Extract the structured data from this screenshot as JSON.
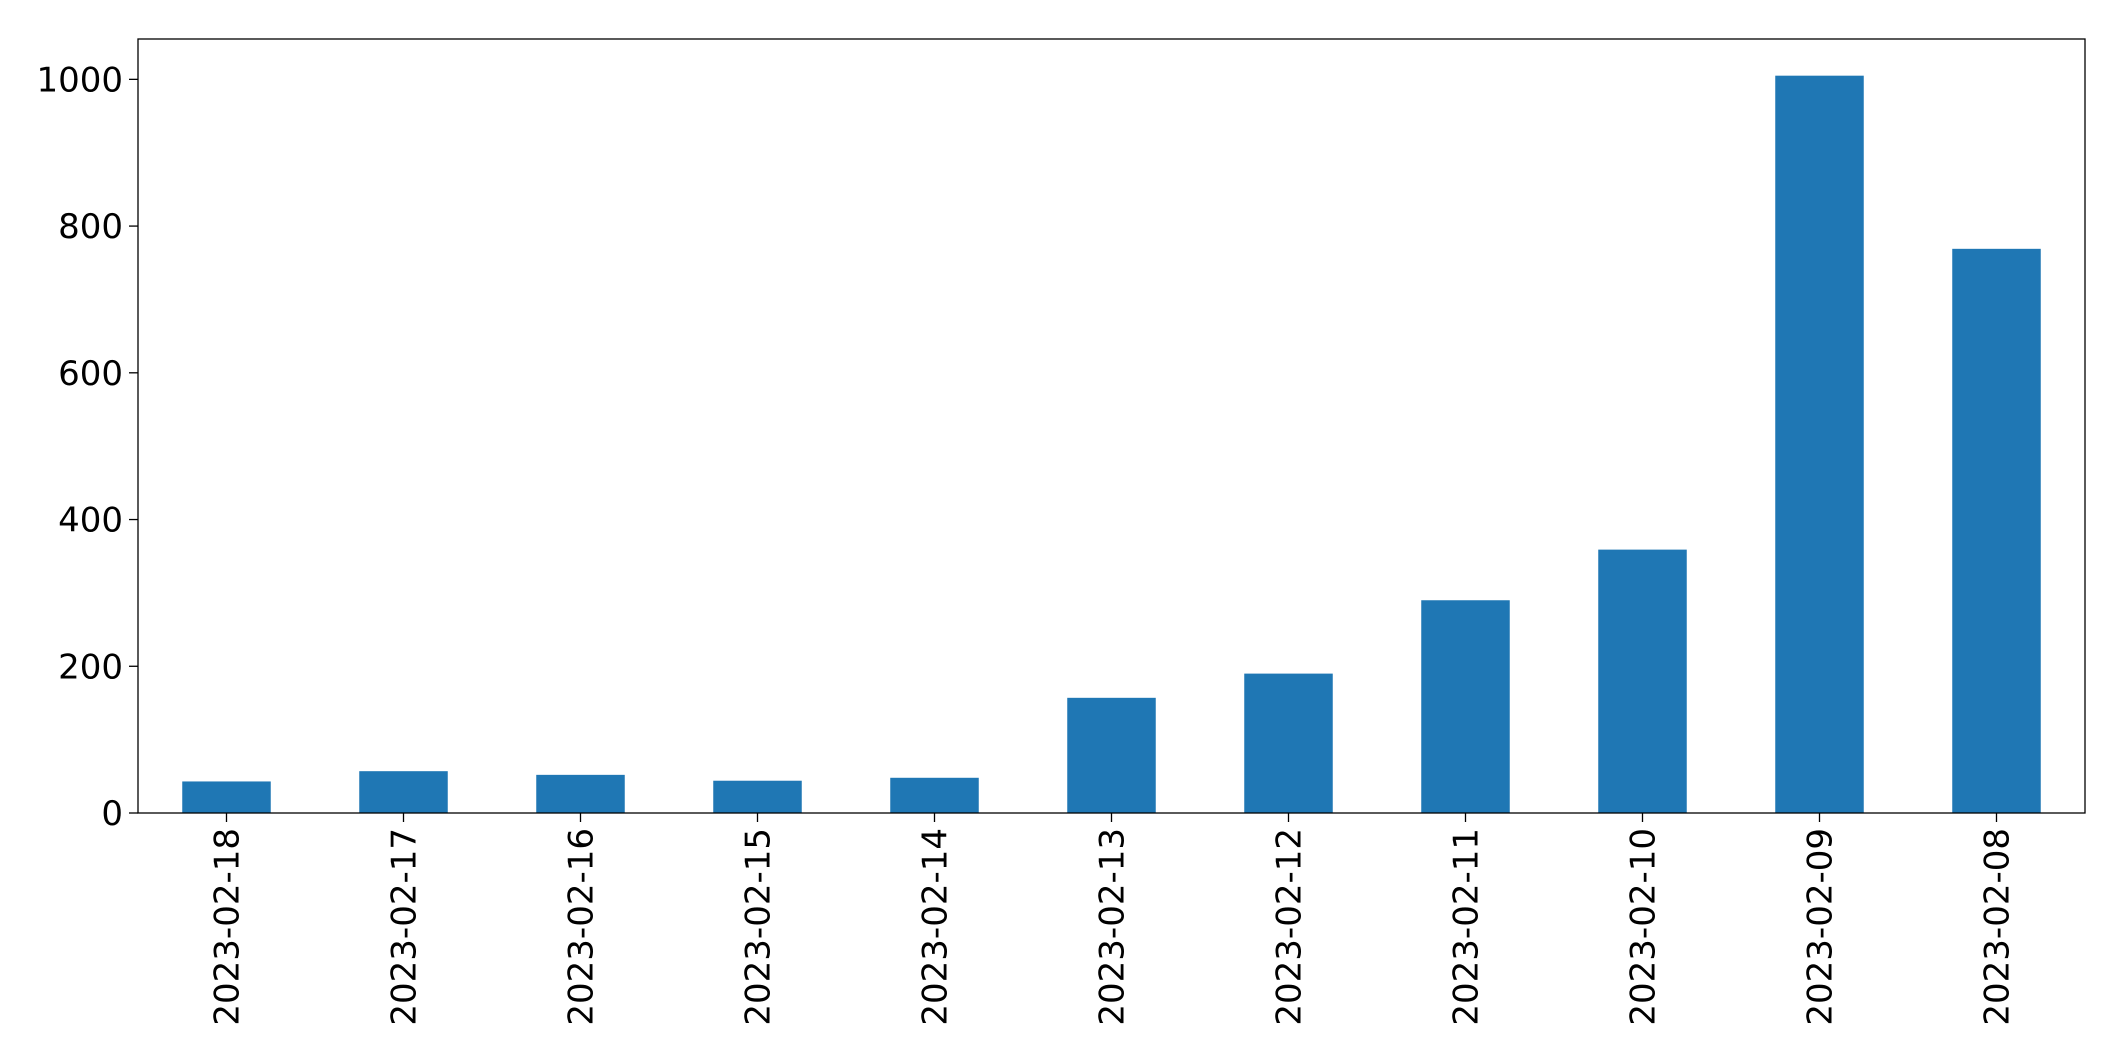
{
  "chart_data": {
    "type": "bar",
    "categories": [
      "2023-02-18",
      "2023-02-17",
      "2023-02-16",
      "2023-02-15",
      "2023-02-14",
      "2023-02-13",
      "2023-02-12",
      "2023-02-11",
      "2023-02-10",
      "2023-02-09",
      "2023-02-08"
    ],
    "values": [
      43,
      57,
      52,
      44,
      48,
      157,
      190,
      290,
      359,
      1005,
      769
    ],
    "color": "#1f77b4",
    "ylim": [
      0,
      1055
    ],
    "yticks": [
      0,
      200,
      400,
      600,
      800,
      1000
    ],
    "grid": false
  }
}
